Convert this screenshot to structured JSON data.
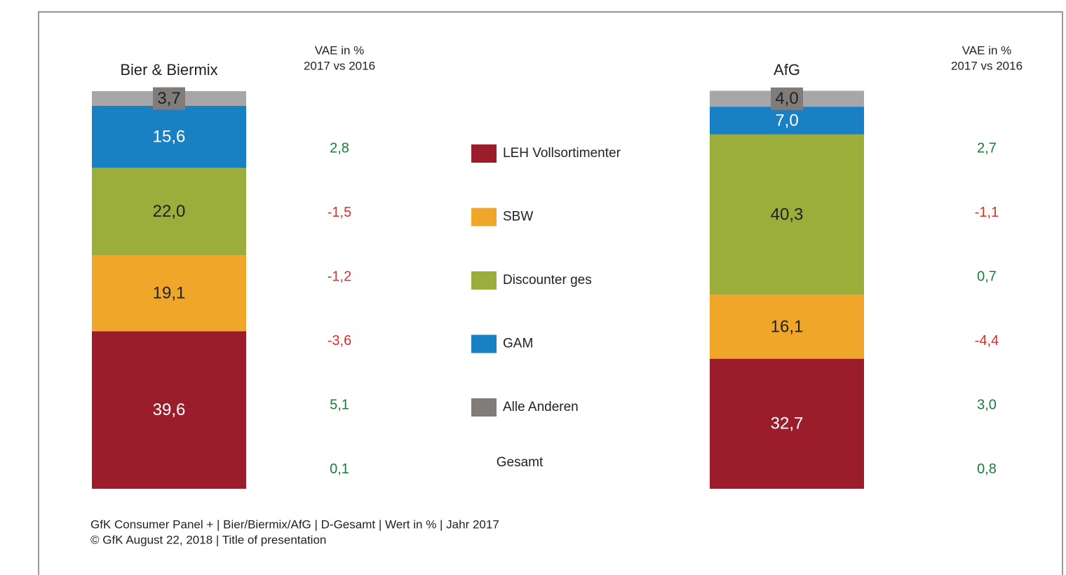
{
  "chart_data": {
    "type": "bar",
    "stacked": true,
    "categories": [
      "Bier & Biermix",
      "AfG"
    ],
    "ylim": [
      0,
      100
    ],
    "change_header": [
      "VAE in %",
      "2017 vs 2016"
    ],
    "positive_color": "#1e7a3c",
    "negative_color": "#d9302a",
    "series": [
      {
        "name": "LEH Vollsortimenter",
        "color": "#9b1d2b",
        "label_color": "#ffffff",
        "values": [
          39.6,
          32.7
        ],
        "value_labels": [
          "39,6",
          "32,7"
        ],
        "changes": [
          2.8,
          2.7
        ],
        "change_labels": [
          "2,8",
          "2,7"
        ]
      },
      {
        "name": "SBW",
        "color": "#f0a729",
        "label_color": "#222222",
        "values": [
          19.1,
          16.1
        ],
        "value_labels": [
          "19,1",
          "16,1"
        ],
        "changes": [
          -1.5,
          -1.1
        ],
        "change_labels": [
          "-1,5",
          "-1,1"
        ]
      },
      {
        "name": "Discounter ges",
        "color": "#9bae3b",
        "label_color": "#222222",
        "values": [
          22.0,
          40.3
        ],
        "value_labels": [
          "22,0",
          "40,3"
        ],
        "changes": [
          -1.2,
          0.7
        ],
        "change_labels": [
          "-1,2",
          "0,7"
        ]
      },
      {
        "name": "GAM",
        "color": "#1a80c4",
        "label_color": "#ffffff",
        "values": [
          15.6,
          7.0
        ],
        "value_labels": [
          "15,6",
          "7,0"
        ],
        "changes": [
          -3.6,
          -4.4
        ],
        "change_labels": [
          "-3,6",
          "-4,4"
        ]
      },
      {
        "name": "Alle Anderen",
        "color": "#a7a7a9",
        "label_color": "#222222",
        "label_background": "#7f7c79",
        "values": [
          3.7,
          4.0
        ],
        "value_labels": [
          "3,7",
          "4,0"
        ],
        "changes": [
          5.1,
          3.0
        ],
        "change_labels": [
          "5,1",
          "3,0"
        ]
      }
    ],
    "total": {
      "name": "Gesamt",
      "changes": [
        0.1,
        0.8
      ],
      "change_labels": [
        "0,1",
        "0,8"
      ]
    },
    "footer": [
      "GfK Consumer Panel + | Bier/Biermix/AfG | D-Gesamt | Wert in % | Jahr 2017",
      "© GfK August 22, 2018 | Title of presentation"
    ]
  }
}
